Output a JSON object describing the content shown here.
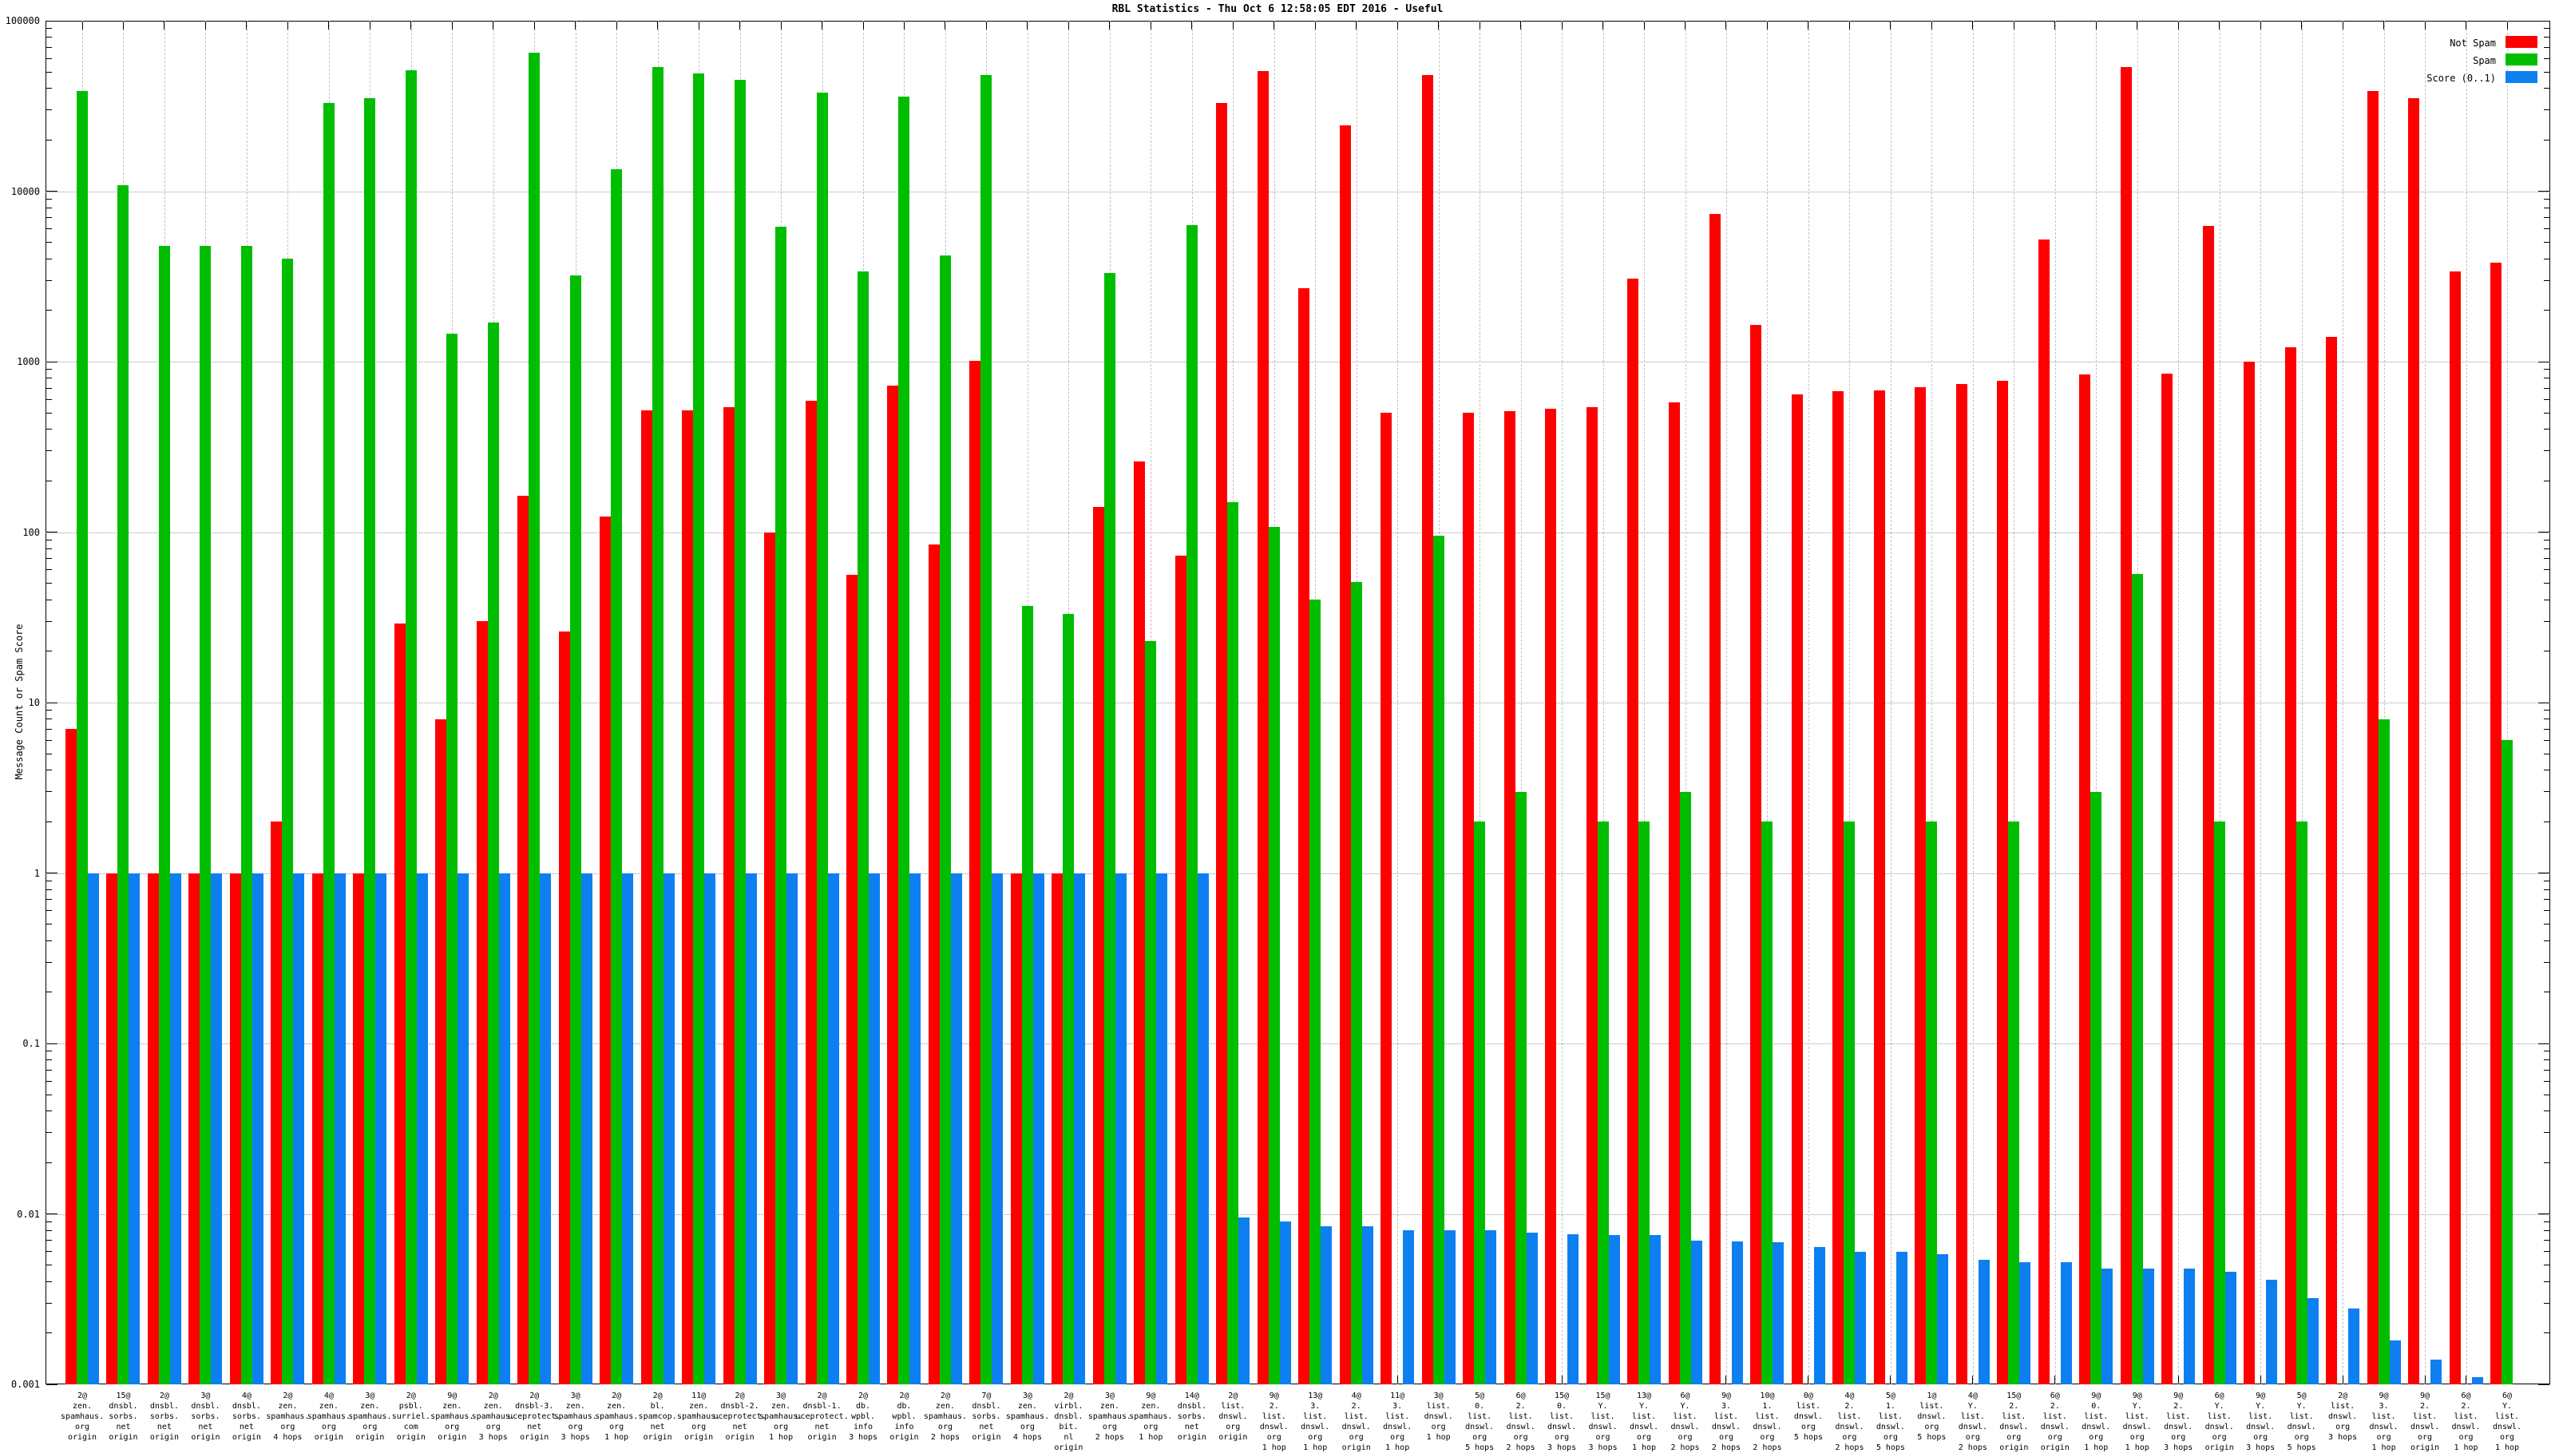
{
  "title": "RBL Statistics - Thu Oct  6 12:58:05 EDT 2016 - Useful",
  "ylabel": "Message Count or Spam Score",
  "legend": [
    {
      "label": "Not Spam",
      "color": "#ff0000"
    },
    {
      "label": "Spam",
      "color": "#00bd00"
    },
    {
      "label": "Score (0..1)",
      "color": "#0e7ff0"
    }
  ],
  "colors": {
    "not_spam": "#ff0000",
    "spam": "#00bd00",
    "score": "#0e7ff0",
    "grid_major": "#9a9a9a",
    "grid_minor": "#c2c2c2"
  },
  "chart_data": {
    "type": "bar",
    "y_scale": "log10",
    "ylim": [
      0.001,
      100000
    ],
    "ytick_labels": [
      "100000",
      "10000",
      "1000",
      "100",
      "10",
      "1",
      "0.1",
      "0.01",
      "0.001"
    ],
    "grid": "on",
    "legend_position": "top-right",
    "categories": [
      "2@\nzen.\nspamhaus.\norg\norigin",
      "15@\ndnsbl.\nsorbs.\nnet\norigin",
      "2@\ndnsbl.\nsorbs.\nnet\norigin",
      "3@\ndnsbl.\nsorbs.\nnet\norigin",
      "4@\ndnsbl.\nsorbs.\nnet\norigin",
      "2@\nzen.\nspamhaus.\norg\n4 hops",
      "4@\nzen.\nspamhaus.\norg\norigin",
      "3@\nzen.\nspamhaus.\norg\norigin",
      "2@\npsbl.\nsurriel.\ncom\norigin",
      "9@\nzen.\nspamhaus.\norg\norigin",
      "2@\nzen.\nspamhaus.\norg\n3 hops",
      "2@\ndnsbl-3.\nuceprotect.\nnet\norigin",
      "3@\nzen.\nspamhaus.\norg\n3 hops",
      "2@\nzen.\nspamhaus.\norg\n1 hop",
      "2@\nbl.\nspamcop.\nnet\norigin",
      "11@\nzen.\nspamhaus.\norg\norigin",
      "2@\ndnsbl-2.\nuceprotect.\nnet\norigin",
      "3@\nzen.\nspamhaus.\norg\n1 hop",
      "2@\ndnsbl-1.\nuceprotect.\nnet\norigin",
      "2@\ndb.\nwpbl.\ninfo\n3 hops",
      "2@\ndb.\nwpbl.\ninfo\norigin",
      "2@\nzen.\nspamhaus.\norg\n2 hops",
      "7@\ndnsbl.\nsorbs.\nnet\norigin",
      "3@\nzen.\nspamhaus.\norg\n4 hops",
      "2@\nvirbl.\ndnsbl.\nbit.\nnl\norigin",
      "3@\nzen.\nspamhaus.\norg\n2 hops",
      "9@\nzen.\nspamhaus.\norg\n1 hop",
      "14@\ndnsbl.\nsorbs.\nnet\norigin",
      "2@\nlist.\ndnswl.\norg\norigin",
      "9@\n2.\nlist.\ndnswl.\norg\n1 hop",
      "13@\n3.\nlist.\ndnswl.\norg\n1 hop",
      "4@\n2.\nlist.\ndnswl.\norg\norigin",
      "11@\n3.\nlist.\ndnswl.\norg\n1 hop",
      "3@\nlist.\ndnswl.\norg\n1 hop",
      "5@\n0.\nlist.\ndnswl.\norg\n5 hops",
      "6@\n2.\nlist.\ndnswl.\norg\n2 hops",
      "15@\n0.\nlist.\ndnswl.\norg\n3 hops",
      "15@\nY.\nlist.\ndnswl.\norg\n3 hops",
      "13@\nY.\nlist.\ndnswl.\norg\n1 hop",
      "6@\nY.\nlist.\ndnswl.\norg\n2 hops",
      "9@\n3.\nlist.\ndnswl.\norg\n2 hops",
      "10@\n1.\nlist.\ndnswl.\norg\n2 hops",
      "0@\nlist.\ndnswl.\norg\n5 hops",
      "4@\n2.\nlist.\ndnswl.\norg\n2 hops",
      "5@\n1.\nlist.\ndnswl.\norg\n5 hops",
      "1@\nlist.\ndnswl.\norg\n5 hops",
      "4@\nY.\nlist.\ndnswl.\norg\n2 hops",
      "15@\n2.\nlist.\ndnswl.\norg\norigin",
      "6@\n2.\nlist.\ndnswl.\norg\norigin",
      "9@\n0.\nlist.\ndnswl.\norg\n1 hop",
      "9@\nY.\nlist.\ndnswl.\norg\n1 hop",
      "9@\n2.\nlist.\ndnswl.\norg\n3 hops",
      "6@\nY.\nlist.\ndnswl.\norg\norigin",
      "9@\nY.\nlist.\ndnswl.\norg\n3 hops",
      "5@\nY.\nlist.\ndnswl.\norg\n5 hops",
      "2@\nlist.\ndnswl.\norg\n3 hops",
      "9@\n3.\nlist.\ndnswl.\norg\n1 hop",
      "9@\n2.\nlist.\ndnswl.\norg\norigin",
      "6@\n2.\nlist.\ndnswl.\norg\n1 hop",
      "6@\nY.\nlist.\ndnswl.\norg\n1 hop"
    ],
    "series": [
      {
        "name": "Not Spam",
        "color": "#ff0000",
        "values": [
          7,
          1,
          1,
          1,
          1,
          2,
          1,
          1,
          29,
          8,
          30,
          163,
          26,
          124,
          520,
          520,
          540,
          100,
          590,
          56,
          720,
          85,
          1010,
          1,
          1,
          140,
          260,
          73,
          33000,
          50800,
          2700,
          24300,
          500,
          48000,
          500,
          510,
          530,
          540,
          3070,
          580,
          7360,
          1640,
          640,
          670,
          680,
          710,
          740,
          770,
          5200,
          840,
          53500,
          850,
          6250,
          1000,
          1210,
          1400,
          38700,
          35300,
          3380,
          3800
        ]
      },
      {
        "name": "Spam",
        "color": "#00bd00",
        "values": [
          38700,
          10900,
          4760,
          4760,
          4760,
          4000,
          33100,
          35300,
          51500,
          1460,
          1700,
          65100,
          3200,
          13500,
          53700,
          48900,
          45000,
          6200,
          38000,
          3390,
          36000,
          4200,
          48000,
          37,
          33,
          3300,
          23,
          6300,
          150,
          107,
          40,
          51,
          0,
          95,
          2,
          3,
          0,
          2,
          2,
          3,
          0,
          2,
          0,
          2,
          0,
          2,
          0,
          2,
          0,
          3,
          57,
          0,
          2,
          0,
          2,
          0,
          8,
          0,
          0,
          6
        ]
      },
      {
        "name": "Score (0..1)",
        "color": "#0e7ff0",
        "values": [
          1,
          1,
          1,
          1,
          1,
          1,
          1,
          1,
          1,
          1,
          1,
          1,
          1,
          1,
          1,
          1,
          1,
          1,
          1,
          1,
          1,
          1,
          1,
          1,
          1,
          1,
          1,
          1,
          0.0095,
          0.009,
          0.0085,
          0.0085,
          0.008,
          0.008,
          0.008,
          0.0078,
          0.0076,
          0.0075,
          0.0075,
          0.007,
          0.0069,
          0.0068,
          0.0064,
          0.006,
          0.006,
          0.0058,
          0.0054,
          0.0052,
          0.0052,
          0.0048,
          0.0048,
          0.0048,
          0.0046,
          0.0041,
          0.0032,
          0.0028,
          0.0018,
          0.0014,
          0.0011,
          0.001
        ]
      }
    ]
  }
}
